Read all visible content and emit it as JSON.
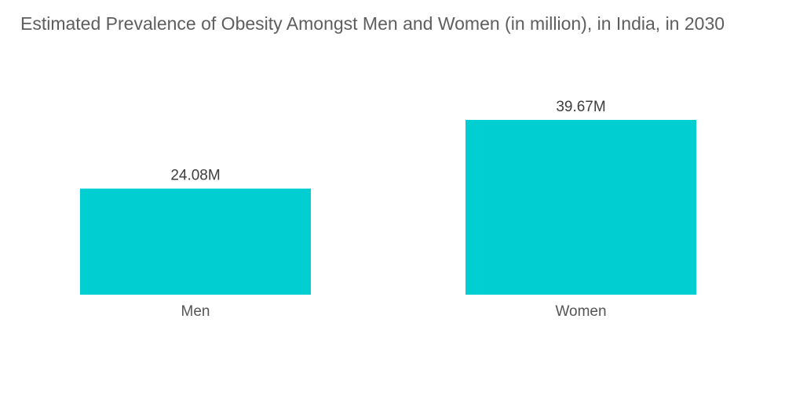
{
  "chart_data": {
    "type": "bar",
    "title": "Estimated Prevalence of Obesity Amongst Men and Women (in million), in India, in 2030",
    "categories": [
      "Men",
      "Women"
    ],
    "values": [
      24.08,
      39.67
    ],
    "data_labels": [
      "24.08M",
      "39.67M"
    ],
    "xlabel": "",
    "ylabel": "",
    "ylim": [
      0,
      45
    ],
    "grid": false,
    "legend": "none",
    "bar_color": "#00CED1"
  }
}
